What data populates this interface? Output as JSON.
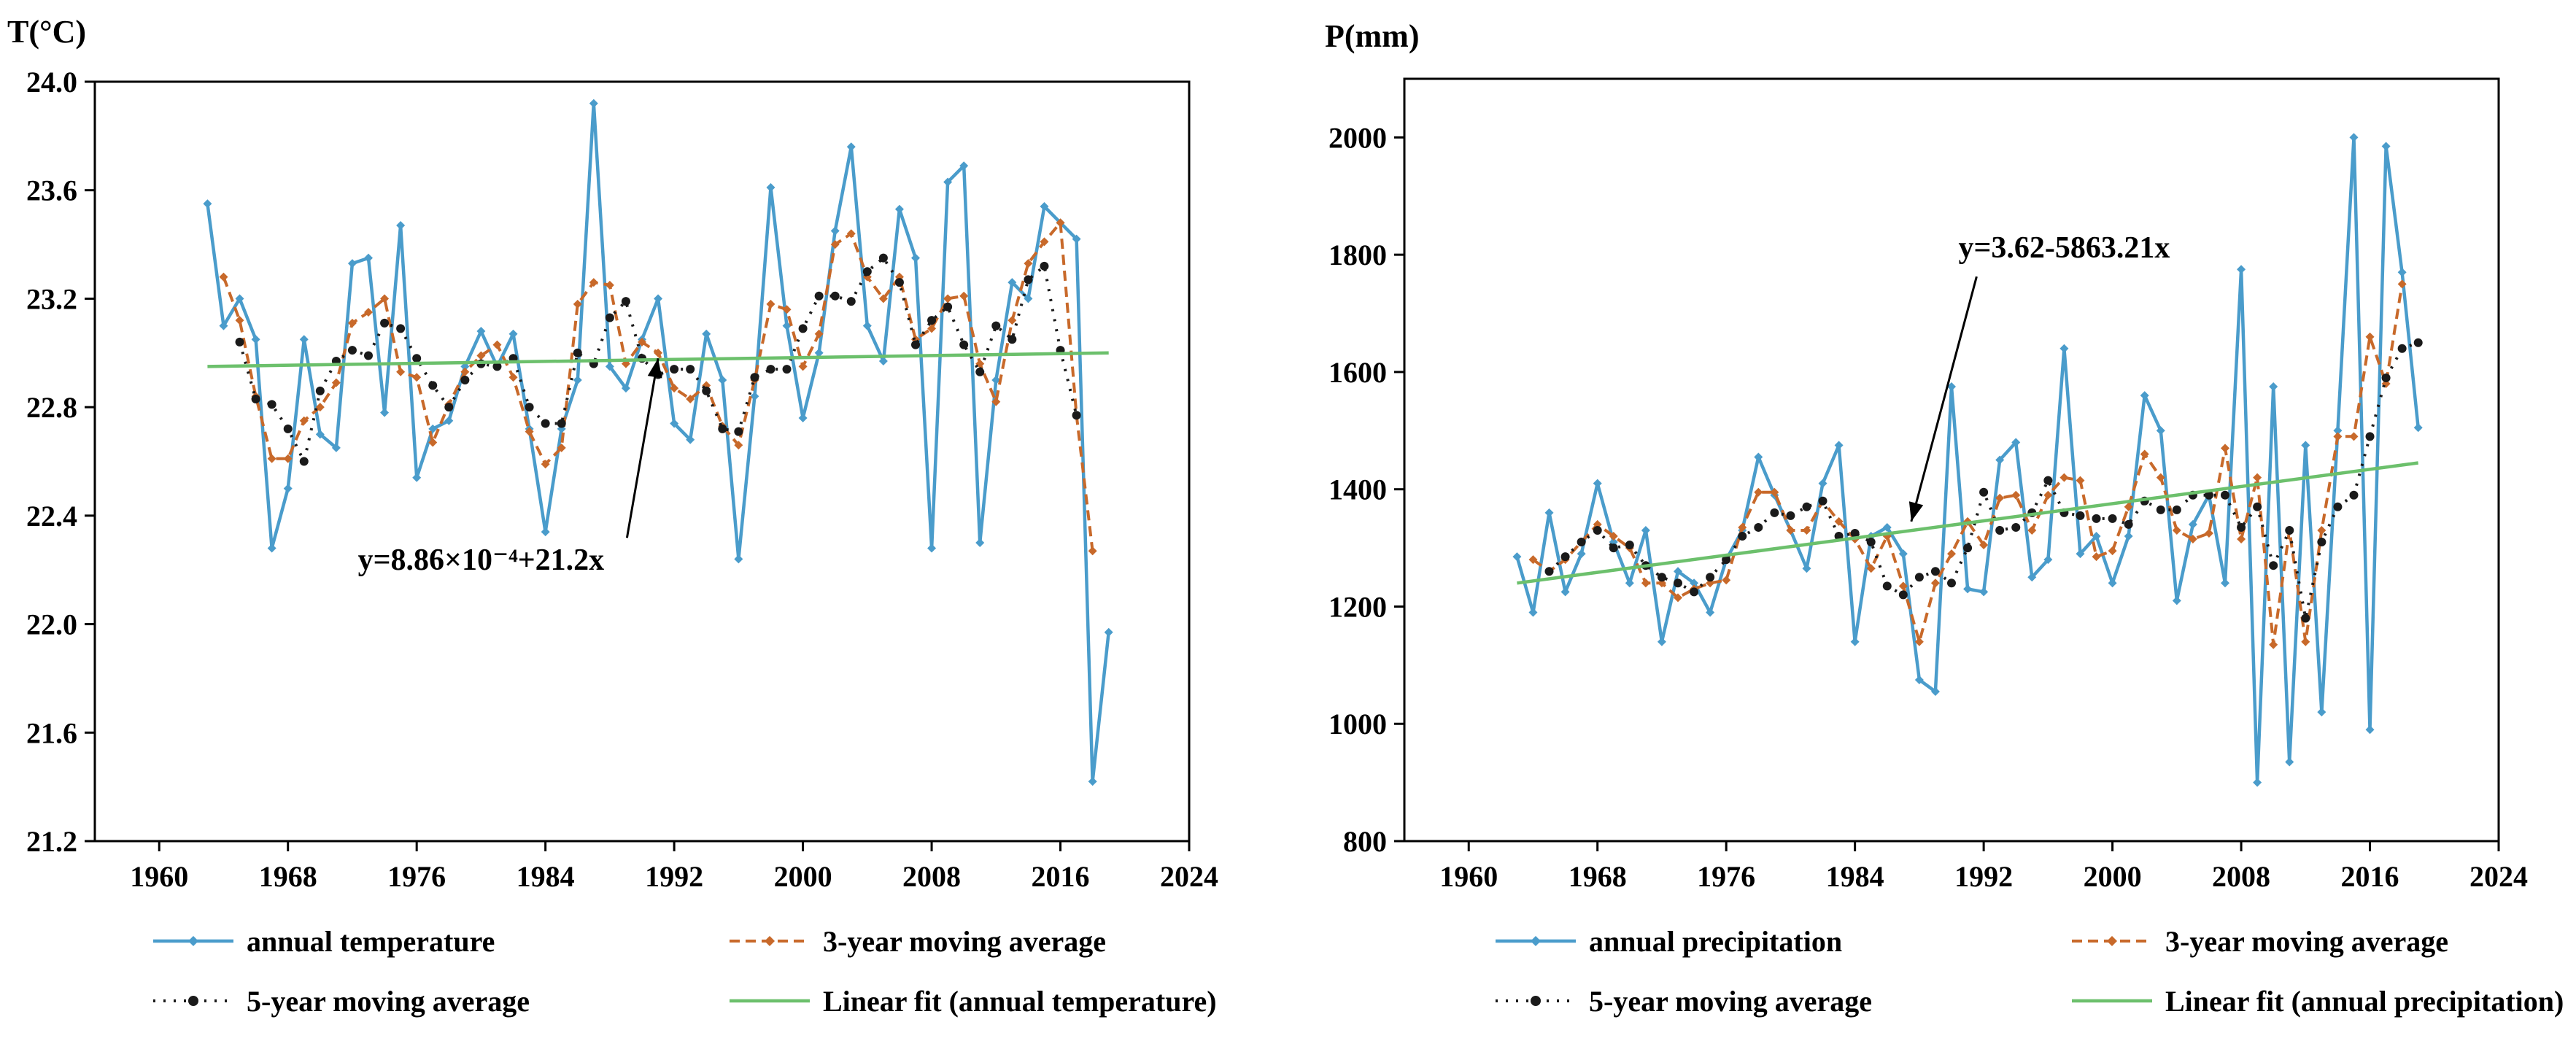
{
  "chart_data": [
    {
      "type": "line",
      "title": "",
      "ylabel": "T(°C)",
      "xlabel": "",
      "xlim": [
        1956,
        2024
      ],
      "ylim": [
        21.2,
        24.0
      ],
      "xticks": [
        1960,
        1968,
        1976,
        1984,
        1992,
        2000,
        2008,
        2016,
        2024
      ],
      "yticks": [
        21.2,
        21.6,
        22.0,
        22.4,
        22.8,
        23.2,
        23.6,
        24.0
      ],
      "ytick_labels": [
        "21.2",
        "21.6",
        "22.0",
        "22.4",
        "22.8",
        "23.2",
        "23.6",
        "24.0"
      ],
      "annotation": {
        "text": "y=8.86×10⁻⁴+21.2x",
        "label_x": 1980,
        "label_y": 22.2,
        "arrow_to_x": 1991,
        "arrow_to_y": 22.98
      },
      "x": [
        1963,
        1964,
        1965,
        1966,
        1967,
        1968,
        1969,
        1970,
        1971,
        1972,
        1973,
        1974,
        1975,
        1976,
        1977,
        1978,
        1979,
        1980,
        1981,
        1982,
        1983,
        1984,
        1985,
        1986,
        1987,
        1988,
        1989,
        1990,
        1991,
        1992,
        1993,
        1994,
        1995,
        1996,
        1997,
        1998,
        1999,
        2000,
        2001,
        2002,
        2003,
        2004,
        2005,
        2006,
        2007,
        2008,
        2009,
        2010,
        2011,
        2012,
        2013,
        2014,
        2015,
        2016,
        2017,
        2018,
        2019
      ],
      "series": [
        {
          "name": "annual temperature",
          "style": "annual",
          "values": [
            23.55,
            23.1,
            23.2,
            23.05,
            22.28,
            22.5,
            23.05,
            22.7,
            22.65,
            23.33,
            23.35,
            22.78,
            23.47,
            22.54,
            22.72,
            22.75,
            22.95,
            23.08,
            22.95,
            23.07,
            22.72,
            22.34,
            22.72,
            22.9,
            23.92,
            22.95,
            22.87,
            23.05,
            23.2,
            22.74,
            22.68,
            23.07,
            22.9,
            22.24,
            22.84,
            23.61,
            23.1,
            22.76,
            23.0,
            23.45,
            23.76,
            23.1,
            22.97,
            23.53,
            23.35,
            22.28,
            23.63,
            23.69,
            22.3,
            22.9,
            23.26,
            23.2,
            23.54,
            23.48,
            23.42,
            21.42,
            21.97
          ]
        },
        {
          "name": "3-year moving average",
          "style": "ma3",
          "values": [
            null,
            23.28,
            23.12,
            22.84,
            22.61,
            22.61,
            22.75,
            22.8,
            22.89,
            23.11,
            23.15,
            23.2,
            22.93,
            22.91,
            22.67,
            22.81,
            22.93,
            22.99,
            23.03,
            22.91,
            22.71,
            22.59,
            22.65,
            23.18,
            23.26,
            23.25,
            22.96,
            23.04,
            23.0,
            22.87,
            22.83,
            22.88,
            22.73,
            22.66,
            22.9,
            23.18,
            23.16,
            22.95,
            23.07,
            23.4,
            23.44,
            23.28,
            23.2,
            23.28,
            23.05,
            23.09,
            23.2,
            23.21,
            22.96,
            22.82,
            23.12,
            23.33,
            23.41,
            23.48,
            22.77,
            22.27,
            null
          ]
        },
        {
          "name": "5-year moving average",
          "style": "ma5",
          "values": [
            null,
            null,
            23.04,
            22.83,
            22.81,
            22.72,
            22.6,
            22.86,
            22.97,
            23.01,
            22.99,
            23.11,
            23.09,
            22.98,
            22.88,
            22.8,
            22.9,
            22.96,
            22.95,
            22.98,
            22.8,
            22.74,
            22.74,
            23.0,
            22.96,
            23.13,
            23.19,
            22.98,
            22.92,
            22.94,
            22.94,
            22.86,
            22.72,
            22.71,
            22.91,
            22.94,
            22.94,
            23.09,
            23.21,
            23.21,
            23.19,
            23.3,
            23.35,
            23.26,
            23.03,
            23.12,
            23.17,
            23.03,
            22.93,
            23.1,
            23.05,
            23.27,
            23.32,
            23.01,
            22.77,
            null,
            null
          ]
        },
        {
          "name": "Linear fit (annual temperature)",
          "style": "fit",
          "fit_x": [
            1963,
            2019
          ],
          "fit_y": [
            22.95,
            23.0
          ]
        }
      ],
      "legend": [
        "annual temperature",
        "3-year moving average",
        "5-year moving average",
        "Linear fit (annual temperature)"
      ],
      "legend_position": "bottom"
    },
    {
      "type": "line",
      "title": "",
      "ylabel": "P(mm)",
      "xlabel": "",
      "xlim": [
        1956,
        2024
      ],
      "ylim": [
        800,
        2100
      ],
      "xticks": [
        1960,
        1968,
        1976,
        1984,
        1992,
        2000,
        2008,
        2016,
        2024
      ],
      "yticks": [
        800,
        1000,
        1200,
        1400,
        1600,
        1800,
        2000
      ],
      "ytick_labels": [
        "800",
        "1000",
        "1200",
        "1400",
        "1600",
        "1800",
        "2000"
      ],
      "annotation": {
        "text": "y=3.62-5863.21x",
        "label_x": 1997,
        "label_y": 1795,
        "arrow_to_x": 1987.5,
        "arrow_to_y": 1345
      },
      "x": [
        1963,
        1964,
        1965,
        1966,
        1967,
        1968,
        1969,
        1970,
        1971,
        1972,
        1973,
        1974,
        1975,
        1976,
        1977,
        1978,
        1979,
        1980,
        1981,
        1982,
        1983,
        1984,
        1985,
        1986,
        1987,
        1988,
        1989,
        1990,
        1991,
        1992,
        1993,
        1994,
        1995,
        1996,
        1997,
        1998,
        1999,
        2000,
        2001,
        2002,
        2003,
        2004,
        2005,
        2006,
        2007,
        2008,
        2009,
        2010,
        2011,
        2012,
        2013,
        2014,
        2015,
        2016,
        2017,
        2018,
        2019
      ],
      "series": [
        {
          "name": "annual precipitation",
          "style": "annual",
          "values": [
            1285,
            1190,
            1360,
            1225,
            1290,
            1410,
            1310,
            1240,
            1330,
            1140,
            1260,
            1240,
            1190,
            1280,
            1330,
            1455,
            1390,
            1330,
            1265,
            1410,
            1475,
            1140,
            1320,
            1335,
            1290,
            1075,
            1055,
            1575,
            1230,
            1225,
            1450,
            1480,
            1250,
            1280,
            1640,
            1290,
            1320,
            1240,
            1320,
            1560,
            1500,
            1210,
            1340,
            1390,
            1240,
            1775,
            900,
            1575,
            935,
            1475,
            1020,
            1500,
            2000,
            990,
            1985,
            1770,
            1505
          ]
        },
        {
          "name": "3-year moving average",
          "style": "ma3",
          "values": [
            null,
            1280,
            1260,
            1280,
            1310,
            1340,
            1320,
            1300,
            1240,
            1240,
            1215,
            1230,
            1240,
            1245,
            1335,
            1395,
            1395,
            1330,
            1330,
            1380,
            1345,
            1315,
            1265,
            1320,
            1235,
            1140,
            1240,
            1290,
            1345,
            1305,
            1385,
            1390,
            1330,
            1390,
            1420,
            1415,
            1285,
            1295,
            1370,
            1460,
            1420,
            1330,
            1315,
            1325,
            1470,
            1315,
            1420,
            1135,
            1330,
            1140,
            1330,
            1490,
            1490,
            1660,
            1580,
            1750,
            null
          ]
        },
        {
          "name": "5-year moving average",
          "style": "ma5",
          "values": [
            null,
            null,
            1260,
            1285,
            1310,
            1330,
            1300,
            1305,
            1270,
            1250,
            1240,
            1225,
            1250,
            1280,
            1320,
            1335,
            1360,
            1355,
            1370,
            1380,
            1320,
            1325,
            1310,
            1235,
            1220,
            1250,
            1260,
            1240,
            1300,
            1395,
            1330,
            1335,
            1360,
            1415,
            1360,
            1355,
            1350,
            1350,
            1340,
            1380,
            1365,
            1365,
            1390,
            1390,
            1390,
            1335,
            1370,
            1270,
            1330,
            1180,
            1310,
            1370,
            1390,
            1490,
            1590,
            1640,
            1650
          ]
        },
        {
          "name": "Linear fit (annual precipitation)",
          "style": "fit",
          "fit_x": [
            1963,
            2019
          ],
          "fit_y": [
            1240,
            1445
          ]
        }
      ],
      "legend": [
        "annual precipitation",
        "3-year moving average",
        "5-year moving average",
        "Linear fit (annual precipitation)"
      ],
      "legend_position": "bottom"
    }
  ],
  "colors": {
    "annual": "#4a9ccb",
    "ma3": "#c8692a",
    "ma5": "#1a1a1a",
    "fit": "#6cc06c",
    "axis": "#000000"
  }
}
